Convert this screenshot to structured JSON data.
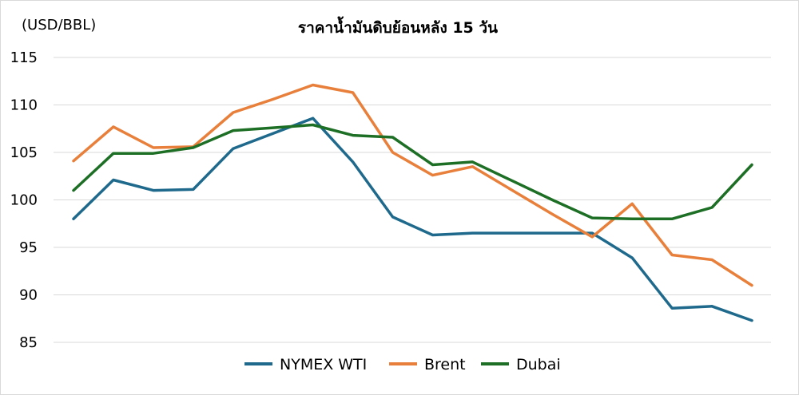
{
  "chart_data": {
    "type": "line",
    "title": "ราคาน้ำมันดิบย้อนหลัง 15 วัน",
    "ylabel": "(USD/BBL)",
    "xlabel": "",
    "ylim": [
      85,
      115
    ],
    "yticks": [
      85,
      90,
      95,
      100,
      105,
      110,
      115
    ],
    "grid": true,
    "legend_position": "bottom",
    "series": [
      {
        "name": "NYMEX WTI",
        "color": "#1f6a8c",
        "values": [
          98.0,
          102.1,
          101.0,
          101.1,
          105.4,
          107.0,
          108.6,
          104.0,
          98.2,
          96.3,
          96.5,
          96.5,
          96.5,
          96.5,
          93.9,
          88.6,
          88.8,
          87.3
        ]
      },
      {
        "name": "Brent",
        "color": "#e8803b",
        "values": [
          104.1,
          107.7,
          105.5,
          105.6,
          109.2,
          110.6,
          112.1,
          111.3,
          105.0,
          102.6,
          103.5,
          101.0,
          98.5,
          96.1,
          99.6,
          94.2,
          93.7,
          91.0
        ]
      },
      {
        "name": "Dubai",
        "color": "#1e6f26",
        "values": [
          101.0,
          104.9,
          104.9,
          105.5,
          107.3,
          107.6,
          107.9,
          106.8,
          106.6,
          103.7,
          104.0,
          102.0,
          100.0,
          98.1,
          98.0,
          98.0,
          99.2,
          103.7
        ]
      }
    ]
  }
}
